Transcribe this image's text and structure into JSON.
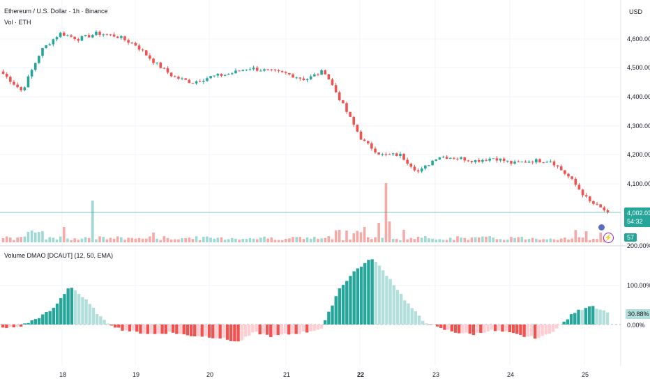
{
  "header": {
    "title": "Ethereum / U.S. Dollar · 1h · Binance",
    "volume_label": "Vol · ETH",
    "currency": "USD"
  },
  "indicator": {
    "title": "Volume DMAO [DCAUT] (12, 50, EMA)"
  },
  "price_axis": {
    "ticks": [
      "4,600.00",
      "4,500.00",
      "4,400.00",
      "4,300.00",
      "4,200.00",
      "4,100.00"
    ]
  },
  "current_price": {
    "value": "4,002.03",
    "countdown": "54:32",
    "volume_badge": "57"
  },
  "indicator_axis": {
    "ticks": [
      "200.00%",
      "100.00%",
      "0.00%"
    ],
    "current_value": "30.88%"
  },
  "time_axis": {
    "labels": [
      "18",
      "19",
      "20",
      "21",
      "22",
      "23",
      "24",
      "25"
    ]
  },
  "colors": {
    "up": "#26a69a",
    "down": "#ef5350",
    "up_light": "#b2dfdb",
    "down_light": "#ffcdd2",
    "vol_up": "#9fd9d3",
    "vol_down": "#f7a9a7",
    "price_line": "#26a69a"
  },
  "icons": [
    "lightning-icon",
    "flag-icon"
  ],
  "chart_data": [
    {
      "type": "line",
      "title": "Ethereum / U.S. Dollar · 1h · Binance",
      "ylabel": "USD",
      "x": [
        "17 22:00",
        "18 00:00",
        "18 06:00",
        "18 12:00",
        "18 18:00",
        "19 00:00",
        "19 06:00",
        "19 12:00",
        "19 18:00",
        "20 00:00",
        "20 06:00",
        "20 12:00",
        "20 18:00",
        "21 00:00",
        "21 06:00",
        "21 12:00",
        "21 18:00",
        "22 00:00",
        "22 03:00",
        "22 06:00",
        "22 12:00",
        "22 18:00",
        "23 00:00",
        "23 06:00",
        "23 12:00",
        "23 18:00",
        "24 00:00",
        "24 06:00",
        "24 12:00",
        "24 18:00",
        "25 00:00",
        "25 03:00",
        "25 06:00"
      ],
      "series": [
        {
          "values": [
            4480,
            4420,
            4560,
            4620,
            4600,
            4620,
            4610,
            4580,
            4520,
            4470,
            4450,
            4470,
            4480,
            4500,
            4490,
            4480,
            4460,
            4490,
            4370,
            4250,
            4200,
            4200,
            4140,
            4195,
            4190,
            4180,
            4190,
            4170,
            4180,
            4180,
            4120,
            4040,
            4002
          ]
        }
      ],
      "ylim": [
        4000,
        4650
      ],
      "y_ticks": [
        4100,
        4200,
        4300,
        4400,
        4500,
        4600
      ]
    },
    {
      "type": "bar",
      "title": "Volume DMAO [DCAUT] (12, 50, EMA)",
      "y_ticks": [
        "200.00%",
        "100.00%",
        "0.00%"
      ],
      "ylim": [
        -50,
        200
      ],
      "x": [
        "17 22:00",
        "18 00:00",
        "18 02:00",
        "18 04:00",
        "18 06:00",
        "18 12:00",
        "18 18:00",
        "19 00:00",
        "19 06:00",
        "19 12:00",
        "19 18:00",
        "20 00:00",
        "20 06:00",
        "20 12:00",
        "20 18:00",
        "21 00:00",
        "21 06:00",
        "21 12:00",
        "21 18:00",
        "22 00:00",
        "22 02:00",
        "22 04:00",
        "22 06:00",
        "22 10:00",
        "22 16:00",
        "23 00:00",
        "23 06:00",
        "23 12:00",
        "23 18:00",
        "24 00:00",
        "24 06:00",
        "24 12:00",
        "24 18:00",
        "25 00:00",
        "25 02:00",
        "25 04:00",
        "25 06:00"
      ],
      "series": [
        {
          "values": [
            -10,
            -5,
            15,
            40,
            100,
            60,
            10,
            -12,
            -20,
            -25,
            -20,
            -28,
            -30,
            -35,
            -45,
            -20,
            -30,
            -25,
            -20,
            -10,
            90,
            140,
            170,
            120,
            60,
            10,
            -10,
            -20,
            -25,
            -15,
            -20,
            -30,
            -35,
            -10,
            30,
            50,
            30.88
          ]
        }
      ]
    }
  ]
}
